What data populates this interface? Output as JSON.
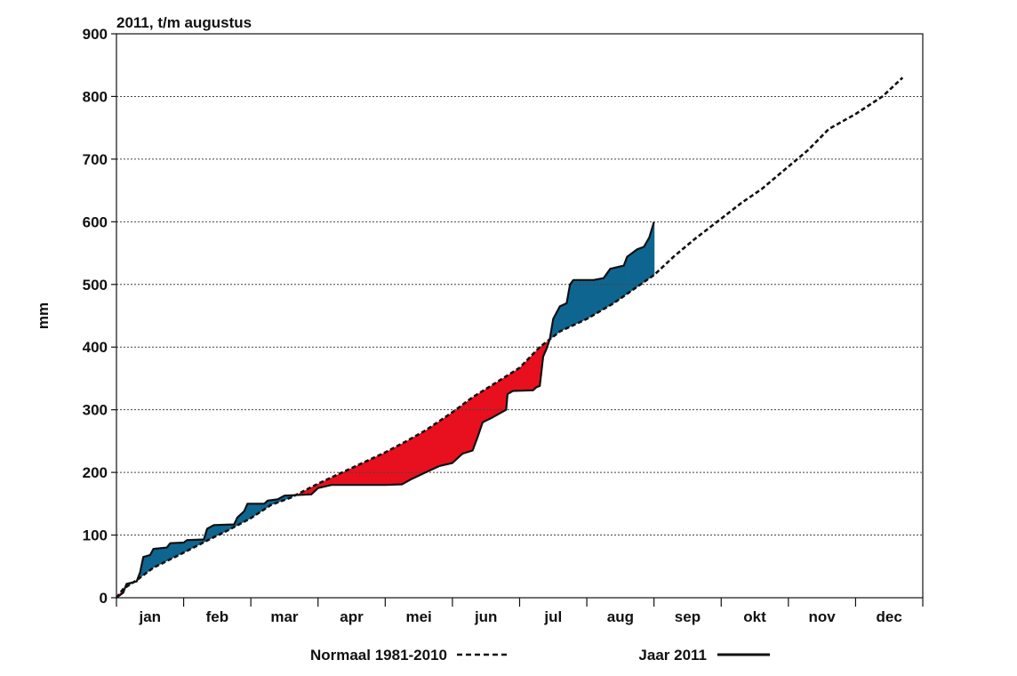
{
  "chart_data": {
    "type": "line",
    "title": "2011, t/m augustus",
    "ylabel": "mm",
    "xlabel": "",
    "ylim": [
      0,
      900
    ],
    "xlim": [
      0,
      12
    ],
    "yticks": [
      0,
      100,
      200,
      300,
      400,
      500,
      600,
      700,
      800,
      900
    ],
    "grid": "horizontal-dashed",
    "months": [
      "jan",
      "feb",
      "mar",
      "apr",
      "mei",
      "jun",
      "jul",
      "aug",
      "sep",
      "okt",
      "nov",
      "dec"
    ],
    "legend_position": "bottom",
    "colors": {
      "above_normal": "#0f6690",
      "below_normal": "#e8101e",
      "line": "#111111",
      "grid": "#555555"
    },
    "series": [
      {
        "name": "Normaal 1981-2010",
        "style": "dashed",
        "points": [
          [
            0,
            0
          ],
          [
            0.1,
            14
          ],
          [
            0.3,
            28
          ],
          [
            0.55,
            48
          ],
          [
            1,
            72
          ],
          [
            1.4,
            94
          ],
          [
            1.65,
            107
          ],
          [
            2,
            127
          ],
          [
            2.3,
            148
          ],
          [
            2.6,
            160
          ],
          [
            2.8,
            171
          ],
          [
            3,
            182
          ],
          [
            3.3,
            197
          ],
          [
            3.6,
            212
          ],
          [
            4,
            232
          ],
          [
            4.3,
            249
          ],
          [
            4.6,
            267
          ],
          [
            5,
            296
          ],
          [
            5.3,
            320
          ],
          [
            5.6,
            340
          ],
          [
            6,
            367
          ],
          [
            6.3,
            400
          ],
          [
            6.6,
            425
          ],
          [
            7,
            445
          ],
          [
            7.4,
            470
          ],
          [
            7.6,
            485
          ],
          [
            8,
            515
          ],
          [
            8.3,
            545
          ],
          [
            8.6,
            572
          ],
          [
            9,
            605
          ],
          [
            9.3,
            630
          ],
          [
            9.6,
            652
          ],
          [
            10,
            688
          ],
          [
            10.3,
            715
          ],
          [
            10.6,
            748
          ],
          [
            11,
            772
          ],
          [
            11.4,
            800
          ],
          [
            11.7,
            830
          ]
        ]
      },
      {
        "name": "Jaar 2011",
        "style": "solid",
        "points": [
          [
            0,
            0
          ],
          [
            0.1,
            8
          ],
          [
            0.15,
            22
          ],
          [
            0.3,
            26
          ],
          [
            0.35,
            40
          ],
          [
            0.4,
            65
          ],
          [
            0.5,
            68
          ],
          [
            0.55,
            78
          ],
          [
            0.75,
            80
          ],
          [
            0.8,
            87
          ],
          [
            1,
            88
          ],
          [
            1.05,
            92
          ],
          [
            1.3,
            93
          ],
          [
            1.35,
            110
          ],
          [
            1.45,
            116
          ],
          [
            1.75,
            117
          ],
          [
            1.8,
            128
          ],
          [
            1.9,
            138
          ],
          [
            1.95,
            150
          ],
          [
            2.1,
            150
          ],
          [
            2.2,
            150
          ],
          [
            2.25,
            155
          ],
          [
            2.4,
            157
          ],
          [
            2.5,
            163
          ],
          [
            2.9,
            165
          ],
          [
            3,
            175
          ],
          [
            3.2,
            180
          ],
          [
            3.5,
            180
          ],
          [
            4,
            180
          ],
          [
            4.25,
            181
          ],
          [
            4.4,
            190
          ],
          [
            4.6,
            200
          ],
          [
            4.8,
            210
          ],
          [
            5,
            215
          ],
          [
            5.15,
            230
          ],
          [
            5.3,
            235
          ],
          [
            5.37,
            255
          ],
          [
            5.45,
            280
          ],
          [
            5.6,
            288
          ],
          [
            5.8,
            300
          ],
          [
            5.82,
            325
          ],
          [
            5.9,
            330
          ],
          [
            6.2,
            331
          ],
          [
            6.25,
            336
          ],
          [
            6.3,
            338
          ],
          [
            6.35,
            385
          ],
          [
            6.4,
            397
          ],
          [
            6.45,
            413
          ],
          [
            6.5,
            445
          ],
          [
            6.6,
            465
          ],
          [
            6.7,
            470
          ],
          [
            6.75,
            500
          ],
          [
            6.8,
            507
          ],
          [
            7.1,
            507
          ],
          [
            7.25,
            510
          ],
          [
            7.35,
            525
          ],
          [
            7.55,
            530
          ],
          [
            7.6,
            544
          ],
          [
            7.75,
            556
          ],
          [
            7.85,
            560
          ],
          [
            7.93,
            575
          ],
          [
            8,
            600
          ]
        ]
      }
    ],
    "legend": {
      "normal_label": "Normaal 1981-2010",
      "year_label": "Jaar 2011"
    }
  }
}
